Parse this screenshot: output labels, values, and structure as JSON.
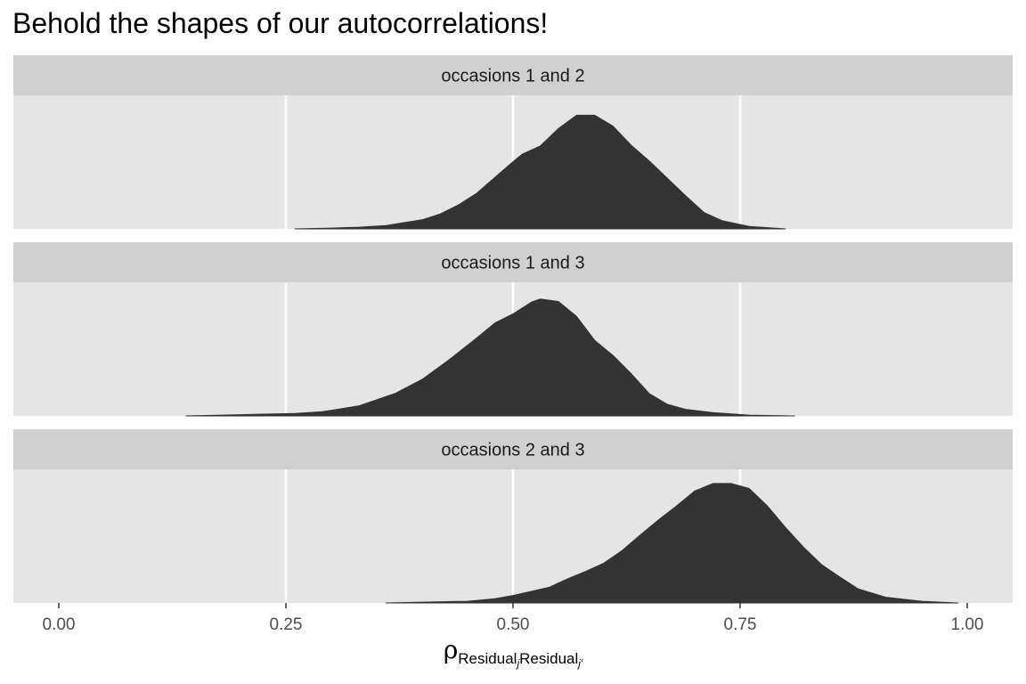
{
  "chart_data": {
    "type": "area",
    "subtype": "density",
    "title": "Behold the shapes of our autocorrelations!",
    "xlabel": {
      "symbol": "ρ",
      "subscript_1": "Residual",
      "subscript_1_index": "j",
      "subscript_2": "Residual",
      "subscript_2_index": "j′"
    },
    "ylabel": "",
    "xlim": [
      0.0,
      1.0
    ],
    "xticks": [
      0.0,
      0.25,
      0.5,
      0.75,
      1.0
    ],
    "xtick_labels": [
      "0.00",
      "0.25",
      "0.50",
      "0.75",
      "1.00"
    ],
    "grid": true,
    "fill_color": "#333333",
    "panel_bg": "#e5e5e5",
    "strip_bg": "#d0d0d0",
    "panels": [
      {
        "label": "occasions 1 and 2",
        "x": [
          0.26,
          0.3,
          0.33,
          0.36,
          0.4,
          0.42,
          0.44,
          0.46,
          0.48,
          0.5,
          0.51,
          0.53,
          0.55,
          0.57,
          0.59,
          0.61,
          0.63,
          0.65,
          0.67,
          0.69,
          0.71,
          0.73,
          0.76,
          0.8
        ],
        "density": [
          0.0,
          0.01,
          0.02,
          0.04,
          0.11,
          0.18,
          0.29,
          0.43,
          0.62,
          0.81,
          0.9,
          1.0,
          1.21,
          1.37,
          1.37,
          1.24,
          1.01,
          0.82,
          0.61,
          0.4,
          0.2,
          0.1,
          0.03,
          0.0
        ]
      },
      {
        "label": "occasions 1 and 3",
        "x": [
          0.14,
          0.18,
          0.22,
          0.26,
          0.29,
          0.33,
          0.37,
          0.4,
          0.43,
          0.46,
          0.48,
          0.5,
          0.52,
          0.53,
          0.55,
          0.57,
          0.59,
          0.61,
          0.63,
          0.65,
          0.67,
          0.69,
          0.72,
          0.76,
          0.81
        ],
        "density": [
          0.0,
          0.01,
          0.02,
          0.03,
          0.05,
          0.12,
          0.27,
          0.44,
          0.68,
          0.94,
          1.12,
          1.23,
          1.37,
          1.41,
          1.38,
          1.2,
          0.91,
          0.73,
          0.51,
          0.27,
          0.14,
          0.08,
          0.04,
          0.01,
          0.0
        ]
      },
      {
        "label": "occasions 2 and 3",
        "x": [
          0.36,
          0.4,
          0.45,
          0.48,
          0.5,
          0.52,
          0.54,
          0.56,
          0.58,
          0.6,
          0.62,
          0.64,
          0.66,
          0.68,
          0.7,
          0.72,
          0.74,
          0.76,
          0.78,
          0.8,
          0.82,
          0.84,
          0.86,
          0.88,
          0.91,
          0.95,
          0.99
        ],
        "density": [
          0.0,
          0.01,
          0.02,
          0.05,
          0.09,
          0.14,
          0.19,
          0.29,
          0.38,
          0.48,
          0.63,
          0.82,
          1.0,
          1.17,
          1.35,
          1.44,
          1.44,
          1.38,
          1.17,
          0.91,
          0.67,
          0.46,
          0.31,
          0.17,
          0.07,
          0.02,
          0.0
        ]
      }
    ]
  }
}
